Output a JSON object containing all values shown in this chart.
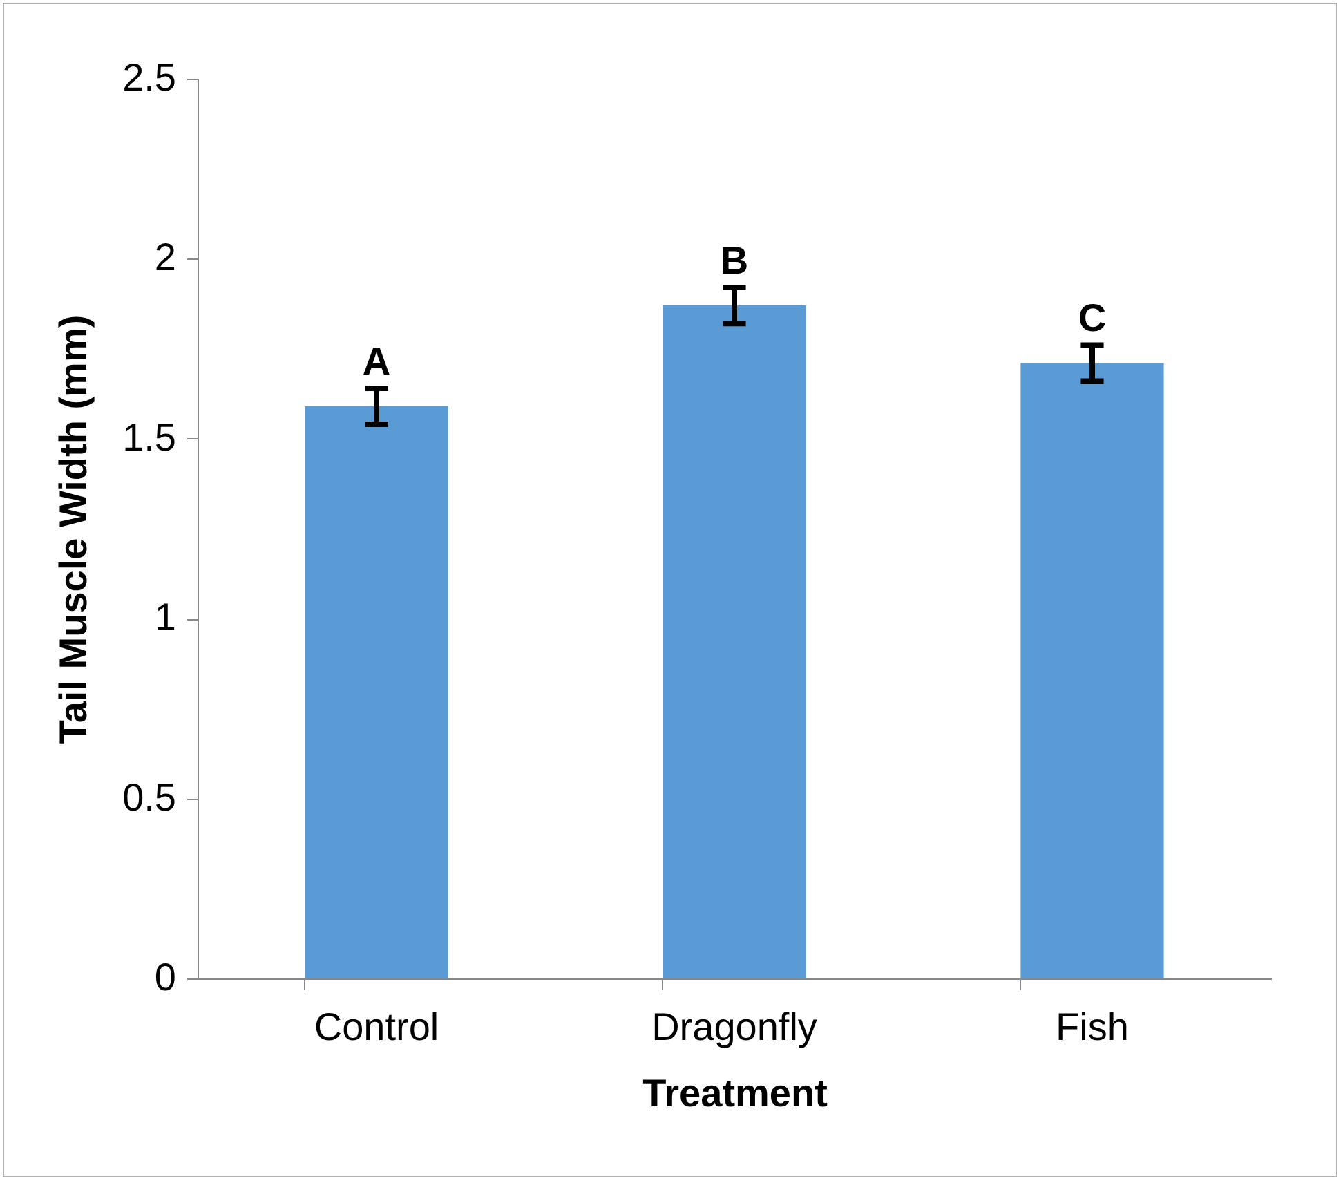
{
  "chart_data": {
    "type": "bar",
    "xlabel": "Treatment",
    "ylabel": "Tail Muscle Width (mm)",
    "categories": [
      "Control",
      "Dragonfly",
      "Fish"
    ],
    "values": [
      1.59,
      1.87,
      1.71
    ],
    "color": "#5b9bd5",
    "errors": [
      0.05,
      0.05,
      0.05
    ],
    "ylim": [
      0,
      2.5
    ],
    "yticks": [
      0,
      0.5,
      1,
      1.5,
      2,
      2.5
    ],
    "grid": false,
    "annotations": [
      {
        "text": "A",
        "x": "Control",
        "y": 1.64
      },
      {
        "text": "B",
        "x": "Dragonfly",
        "y": 1.92
      },
      {
        "text": "C",
        "x": "Fish",
        "y": 1.76
      }
    ]
  }
}
